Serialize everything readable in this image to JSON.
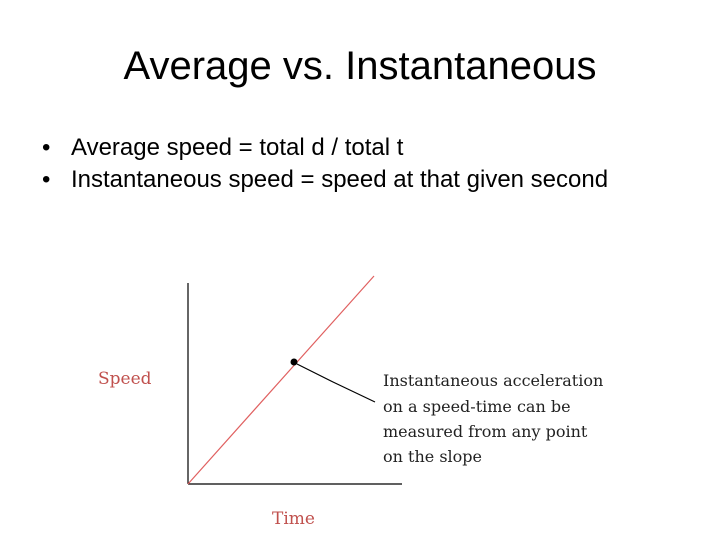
{
  "slide": {
    "title": "Average vs. Instantaneous",
    "bullets": [
      {
        "marker": "•",
        "text": "Average speed = total d / total t"
      },
      {
        "marker": "•",
        "text": "Instantaneous speed = speed at that given second"
      }
    ]
  },
  "figure": {
    "y_label": "Speed",
    "x_label": "Time",
    "annotation_lines": [
      "Instantaneous acceleration",
      "on a speed-time can be",
      "measured from any point",
      "on the slope"
    ],
    "colors": {
      "axis_label": "#c0504d",
      "slope_line": "#e06060",
      "axes": "#000000",
      "point": "#000000"
    }
  }
}
